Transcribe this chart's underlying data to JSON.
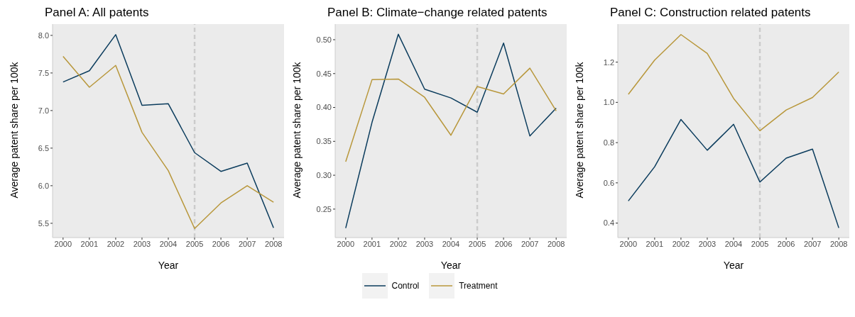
{
  "chart_data": [
    {
      "type": "line",
      "title": "Panel A: All patents",
      "xlabel": "Year",
      "ylabel": "Average patent share per 100k",
      "x": [
        2000,
        2001,
        2002,
        2003,
        2004,
        2005,
        2006,
        2007,
        2008
      ],
      "xlim": [
        1999.6,
        2008.4
      ],
      "xticks": [
        2000,
        2001,
        2002,
        2003,
        2004,
        2005,
        2006,
        2007,
        2008
      ],
      "ylim": [
        5.31,
        8.15
      ],
      "yticks": [
        {
          "value": 5.5,
          "label": "5.5"
        },
        {
          "value": 6,
          "label": "6.0"
        },
        {
          "value": 6.5,
          "label": "6.5"
        },
        {
          "value": 7,
          "label": "7.0"
        },
        {
          "value": 7.5,
          "label": "7.5"
        },
        {
          "value": 8,
          "label": "8.0"
        }
      ],
      "grid": false,
      "marker": "none",
      "line_style": "solid",
      "ref_lines": [
        {
          "axis": "x",
          "value": 2005,
          "color": "#cccccc",
          "line_style": "dashed"
        }
      ],
      "series": [
        {
          "color": "#0b3c5d",
          "values": [
            7.38,
            7.53,
            8.01,
            7.07,
            7.09,
            6.44,
            6.19,
            6.3,
            5.44
          ]
        },
        {
          "color": "#b8973b",
          "values": [
            7.72,
            7.31,
            7.6,
            6.71,
            6.2,
            5.43,
            5.77,
            6.0,
            5.78
          ]
        }
      ]
    },
    {
      "type": "line",
      "title": "Panel B: Climate−change related patents",
      "xlabel": "Year",
      "ylabel": "Average patent share per 100k",
      "x": [
        2000,
        2001,
        2002,
        2003,
        2004,
        2005,
        2006,
        2007,
        2008
      ],
      "xlim": [
        1999.6,
        2008.4
      ],
      "xticks": [
        2000,
        2001,
        2002,
        2003,
        2004,
        2005,
        2006,
        2007,
        2008
      ],
      "ylim": [
        0.208,
        0.523
      ],
      "yticks": [
        {
          "value": 0.25,
          "label": "0.25"
        },
        {
          "value": 0.3,
          "label": "0.30"
        },
        {
          "value": 0.35,
          "label": "0.35"
        },
        {
          "value": 0.4,
          "label": "0.40"
        },
        {
          "value": 0.45,
          "label": "0.45"
        },
        {
          "value": 0.5,
          "label": "0.50"
        }
      ],
      "grid": false,
      "marker": "none",
      "line_style": "solid",
      "legend": "bottom",
      "ref_lines": [
        {
          "axis": "x",
          "value": 2005,
          "color": "#cccccc",
          "line_style": "dashed"
        }
      ],
      "series": [
        {
          "name": "Control",
          "color": "#0b3c5d",
          "values": [
            0.222,
            0.378,
            0.508,
            0.427,
            0.414,
            0.393,
            0.495,
            0.358,
            0.399
          ]
        },
        {
          "name": "Treatment",
          "color": "#b8973b",
          "values": [
            0.32,
            0.441,
            0.442,
            0.415,
            0.359,
            0.431,
            0.42,
            0.458,
            0.395
          ]
        }
      ]
    },
    {
      "type": "line",
      "title": "Panel C: Construction related patents",
      "xlabel": "Year",
      "ylabel": "Average patent share per 100k",
      "x": [
        2000,
        2001,
        2002,
        2003,
        2004,
        2005,
        2006,
        2007,
        2008
      ],
      "xlim": [
        1999.6,
        2008.4
      ],
      "xticks": [
        2000,
        2001,
        2002,
        2003,
        2004,
        2005,
        2006,
        2007,
        2008
      ],
      "ylim": [
        0.328,
        1.389
      ],
      "yticks": [
        {
          "value": 0.4,
          "label": "0.4"
        },
        {
          "value": 0.6,
          "label": "0.6"
        },
        {
          "value": 0.8,
          "label": "0.8"
        },
        {
          "value": 1,
          "label": "1.0"
        },
        {
          "value": 1.2,
          "label": "1.2"
        }
      ],
      "grid": false,
      "marker": "none",
      "line_style": "solid",
      "ref_lines": [
        {
          "axis": "x",
          "value": 2005,
          "color": "#cccccc",
          "line_style": "dashed"
        }
      ],
      "series": [
        {
          "color": "#0b3c5d",
          "values": [
            0.51,
            0.68,
            0.915,
            0.762,
            0.891,
            0.604,
            0.723,
            0.768,
            0.376
          ]
        },
        {
          "color": "#b8973b",
          "values": [
            1.04,
            1.21,
            1.337,
            1.243,
            1.02,
            0.859,
            0.962,
            1.024,
            1.151
          ]
        }
      ]
    }
  ]
}
